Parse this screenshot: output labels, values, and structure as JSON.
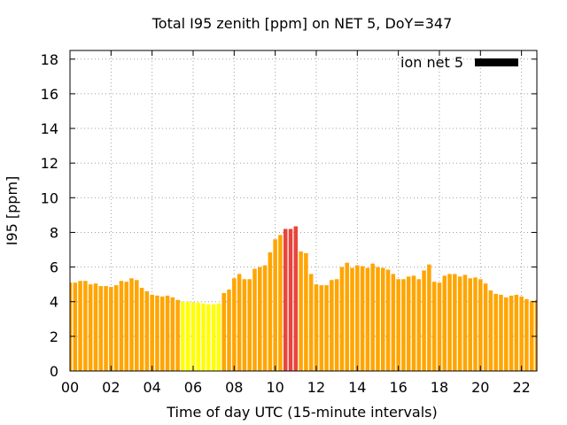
{
  "chart_data": {
    "type": "bar",
    "title": "Total I95 zenith [ppm] on NET 5, DoY=347",
    "xlabel": "Time of day UTC (15-minute intervals)",
    "ylabel": "I95 [ppm]",
    "x_range_hours": [
      0,
      22.75
    ],
    "ylim": [
      0,
      18.5
    ],
    "x_ticks": [
      "00",
      "02",
      "04",
      "06",
      "08",
      "10",
      "12",
      "14",
      "16",
      "18",
      "20",
      "22"
    ],
    "y_ticks": [
      "0",
      "2",
      "4",
      "6",
      "8",
      "10",
      "12",
      "14",
      "16",
      "18"
    ],
    "grid": true,
    "legend": {
      "label": "ion net 5",
      "color": "#000000",
      "position": "top-right"
    },
    "color_scale": {
      "yellow": "#ffff00",
      "orange": "#ffa500",
      "red": "#e8453c"
    },
    "series": [
      {
        "values": [
          5.1,
          5.1,
          5.2,
          5.2,
          5.0,
          5.05,
          4.9,
          4.9,
          4.85,
          4.95,
          5.2,
          5.15,
          5.35,
          5.25,
          4.8,
          4.6,
          4.4,
          4.35,
          4.3,
          4.35,
          4.25,
          4.1,
          4.0,
          4.0,
          3.95,
          3.95,
          3.9,
          3.85,
          3.85,
          3.9,
          4.5,
          4.7,
          5.35,
          5.6,
          5.3,
          5.3,
          5.9,
          6.0,
          6.1,
          6.85,
          7.6,
          7.85,
          8.2,
          8.2,
          8.35,
          6.9,
          6.8,
          5.6,
          5.0,
          4.95,
          4.95,
          5.25,
          5.3,
          6.0,
          6.25,
          5.95,
          6.1,
          6.05,
          5.95,
          6.2,
          6.0,
          5.95,
          5.85,
          5.6,
          5.3,
          5.3,
          5.45,
          5.5,
          5.3,
          5.8,
          6.15,
          5.15,
          5.1,
          5.5,
          5.6,
          5.6,
          5.45,
          5.55,
          5.35,
          5.4,
          5.3,
          5.05,
          4.65,
          4.45,
          4.4,
          4.25,
          4.35,
          4.4,
          4.3,
          4.15,
          4.05,
          4.1
        ],
        "colors": [
          "orange",
          "orange",
          "orange",
          "orange",
          "orange",
          "orange",
          "orange",
          "orange",
          "orange",
          "orange",
          "orange",
          "orange",
          "orange",
          "orange",
          "orange",
          "orange",
          "orange",
          "orange",
          "orange",
          "orange",
          "orange",
          "orange",
          "yellow",
          "yellow",
          "yellow",
          "yellow",
          "yellow",
          "yellow",
          "yellow",
          "yellow",
          "orange",
          "orange",
          "orange",
          "orange",
          "orange",
          "orange",
          "orange",
          "orange",
          "orange",
          "orange",
          "orange",
          "orange",
          "red",
          "red",
          "red",
          "orange",
          "orange",
          "orange",
          "orange",
          "orange",
          "orange",
          "orange",
          "orange",
          "orange",
          "orange",
          "orange",
          "orange",
          "orange",
          "orange",
          "orange",
          "orange",
          "orange",
          "orange",
          "orange",
          "orange",
          "orange",
          "orange",
          "orange",
          "orange",
          "orange",
          "orange",
          "orange",
          "orange",
          "orange",
          "orange",
          "orange",
          "orange",
          "orange",
          "orange",
          "orange",
          "orange",
          "orange",
          "orange",
          "orange",
          "orange",
          "orange",
          "orange",
          "orange",
          "orange",
          "orange",
          "orange",
          "orange"
        ]
      }
    ]
  }
}
